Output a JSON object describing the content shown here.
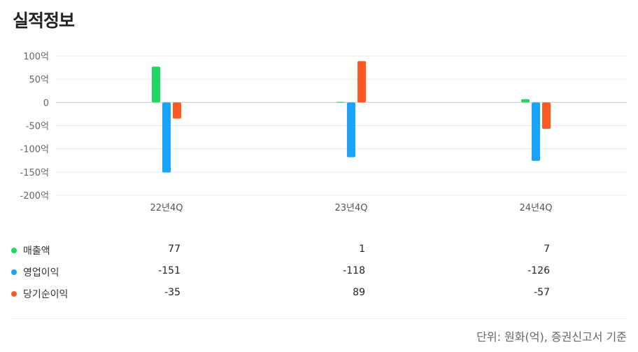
{
  "page": {
    "title": "실적정보"
  },
  "chart_data": {
    "type": "bar",
    "categories": [
      "22년4Q",
      "23년4Q",
      "24년4Q"
    ],
    "series": [
      {
        "name": "매출액",
        "color": "#1ed760",
        "values": [
          77,
          1,
          7
        ]
      },
      {
        "name": "영업이익",
        "color": "#1aa3ff",
        "values": [
          -151,
          -118,
          -126
        ]
      },
      {
        "name": "당기순이익",
        "color": "#ff5a26",
        "values": [
          -35,
          89,
          -57
        ]
      }
    ],
    "y_ticks": [
      {
        "value": 100,
        "label": "100억"
      },
      {
        "value": 50,
        "label": "50억"
      },
      {
        "value": 0,
        "label": "0"
      },
      {
        "value": -50,
        "label": "-50억"
      },
      {
        "value": -100,
        "label": "-100억"
      },
      {
        "value": -150,
        "label": "-150억"
      },
      {
        "value": -200,
        "label": "-200억"
      }
    ],
    "ylim": [
      -200,
      100
    ],
    "grid": true
  },
  "table": {
    "rows": [
      {
        "name": "매출액",
        "color": "#1ed760",
        "values": [
          "77",
          "1",
          "7"
        ]
      },
      {
        "name": "영업이익",
        "color": "#1aa3ff",
        "values": [
          "-151",
          "-118",
          "-126"
        ]
      },
      {
        "name": "당기순이익",
        "color": "#ff5a26",
        "values": [
          "-35",
          "89",
          "-57"
        ]
      }
    ]
  },
  "footnote": "단위: 원화(억), 증권신고서 기준"
}
